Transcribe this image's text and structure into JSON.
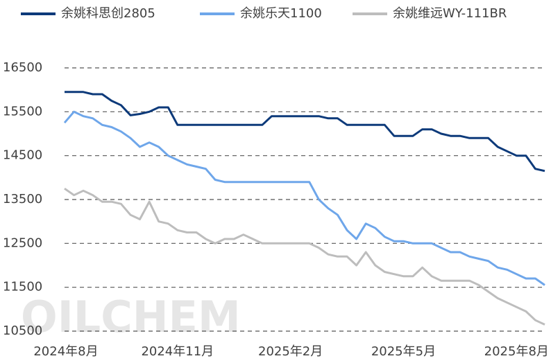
{
  "chart_data": {
    "type": "line",
    "watermark": "OILCHEM",
    "categories": [
      "2024年8月",
      null,
      null,
      null,
      null,
      null,
      null,
      null,
      null,
      null,
      null,
      null,
      "2024年11月",
      null,
      null,
      null,
      null,
      null,
      null,
      null,
      null,
      null,
      null,
      null,
      "2025年2月",
      null,
      null,
      null,
      null,
      null,
      null,
      null,
      null,
      null,
      null,
      null,
      "2025年5月",
      null,
      null,
      null,
      null,
      null,
      null,
      null,
      null,
      null,
      null,
      null,
      "2025年8月",
      null,
      null,
      null
    ],
    "series": [
      {
        "name": "余姚科思创2805",
        "color": "#0d3a7a",
        "values": [
          15950,
          15950,
          15950,
          15900,
          15900,
          15750,
          15650,
          15420,
          15450,
          15500,
          15600,
          15600,
          15200,
          15200,
          15200,
          15200,
          15200,
          15200,
          15200,
          15200,
          15200,
          15200,
          15400,
          15400,
          15400,
          15400,
          15400,
          15400,
          15350,
          15350,
          15200,
          15200,
          15200,
          15200,
          15200,
          14950,
          14950,
          14950,
          15100,
          15100,
          15000,
          14950,
          14950,
          14900,
          14900,
          14900,
          14700,
          14600,
          14500,
          14500,
          14200,
          14150
        ]
      },
      {
        "name": "余姚乐天1100",
        "color": "#6ea6ea",
        "values": [
          15250,
          15500,
          15400,
          15350,
          15200,
          15150,
          15050,
          14900,
          14700,
          14800,
          14700,
          14500,
          14400,
          14300,
          14250,
          14200,
          13950,
          13900,
          13900,
          13900,
          13900,
          13900,
          13900,
          13900,
          13900,
          13900,
          13900,
          13500,
          13300,
          13150,
          12800,
          12600,
          12950,
          12850,
          12650,
          12550,
          12550,
          12500,
          12500,
          12500,
          12400,
          12300,
          12300,
          12200,
          12150,
          12100,
          11950,
          11900,
          11800,
          11700,
          11700,
          11550
        ]
      },
      {
        "name": "余姚维远WY-111BR",
        "color": "#bdbdbd",
        "values": [
          13750,
          13600,
          13700,
          13600,
          13450,
          13450,
          13400,
          13150,
          13050,
          13450,
          13000,
          12950,
          12800,
          12750,
          12750,
          12600,
          12500,
          12600,
          12600,
          12700,
          12600,
          12500,
          12500,
          12500,
          12500,
          12500,
          12500,
          12400,
          12250,
          12200,
          12200,
          12000,
          12300,
          12000,
          11850,
          11800,
          11750,
          11750,
          11950,
          11750,
          11650,
          11650,
          11650,
          11650,
          11550,
          11400,
          11250,
          11150,
          11050,
          10950,
          10750,
          10650
        ]
      }
    ],
    "ylim": [
      10500,
      16500
    ],
    "yticks": [
      10500,
      11500,
      12500,
      13500,
      14500,
      15500,
      16500
    ],
    "grid": true
  }
}
